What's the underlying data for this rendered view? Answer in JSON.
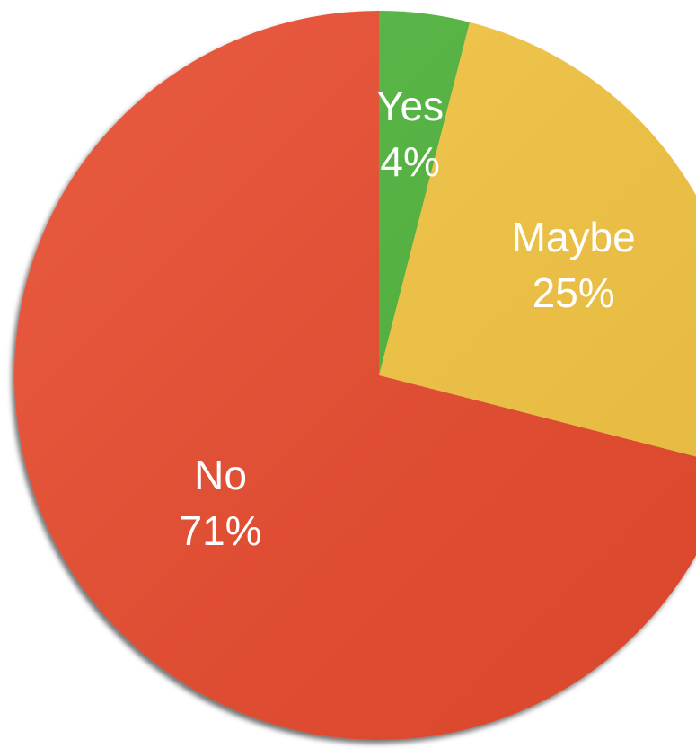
{
  "chart_data": {
    "type": "pie",
    "title": "",
    "slices": [
      {
        "label": "Yes",
        "value": 4,
        "percent_label": "4%",
        "color": "#4fb43a"
      },
      {
        "label": "Maybe",
        "value": 25,
        "percent_label": "25%",
        "color": "#f4c542"
      },
      {
        "label": "No",
        "value": 71,
        "percent_label": "71%",
        "color": "#e84c2d"
      }
    ],
    "start_angle": "12 o'clock",
    "direction": "clockwise",
    "legend": "none"
  }
}
